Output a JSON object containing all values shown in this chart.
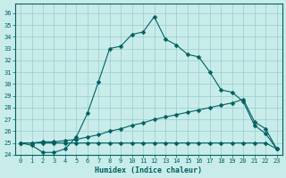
{
  "xlabel": "Humidex (Indice chaleur)",
  "background_color": "#c8ecea",
  "grid_color": "#99cccc",
  "line_color": "#006060",
  "xlim": [
    -0.5,
    23.5
  ],
  "ylim": [
    24,
    36.8
  ],
  "yticks": [
    24,
    25,
    26,
    27,
    28,
    29,
    30,
    31,
    32,
    33,
    34,
    35,
    36
  ],
  "xticks": [
    0,
    1,
    2,
    3,
    4,
    5,
    6,
    7,
    8,
    9,
    10,
    11,
    12,
    13,
    14,
    15,
    16,
    17,
    18,
    19,
    20,
    21,
    22,
    23
  ],
  "curve1_x": [
    0,
    1,
    2,
    3,
    4,
    5,
    6,
    7,
    8,
    9,
    10,
    11,
    12,
    13,
    14,
    15,
    16,
    17,
    18,
    19,
    20,
    21,
    22,
    23
  ],
  "curve1_y": [
    25.0,
    24.8,
    24.2,
    24.2,
    24.5,
    25.5,
    27.5,
    30.2,
    33.0,
    33.2,
    34.2,
    34.4,
    35.7,
    33.8,
    33.3,
    32.5,
    32.3,
    31.0,
    29.5,
    29.3,
    28.5,
    26.5,
    25.8,
    24.5
  ],
  "curve2_x": [
    0,
    1,
    2,
    3,
    4,
    5,
    6,
    7,
    8,
    9,
    10,
    11,
    12,
    13,
    14,
    15,
    16,
    17,
    18,
    19,
    20,
    21,
    22,
    23
  ],
  "curve2_y": [
    25.0,
    25.0,
    25.1,
    25.1,
    25.2,
    25.3,
    25.5,
    25.7,
    26.0,
    26.2,
    26.5,
    26.7,
    27.0,
    27.2,
    27.4,
    27.6,
    27.8,
    28.0,
    28.2,
    28.4,
    28.7,
    26.8,
    26.2,
    24.5
  ],
  "curve3_x": [
    0,
    1,
    2,
    3,
    4,
    5,
    6,
    7,
    8,
    9,
    10,
    11,
    12,
    13,
    14,
    15,
    16,
    17,
    18,
    19,
    20,
    21,
    22,
    23
  ],
  "curve3_y": [
    25.0,
    25.0,
    25.0,
    25.0,
    25.0,
    25.0,
    25.0,
    25.0,
    25.0,
    25.0,
    25.0,
    25.0,
    25.0,
    25.0,
    25.0,
    25.0,
    25.0,
    25.0,
    25.0,
    25.0,
    25.0,
    25.0,
    25.0,
    24.5
  ],
  "xlabel_fontsize": 6.0,
  "tick_fontsize": 5.0
}
